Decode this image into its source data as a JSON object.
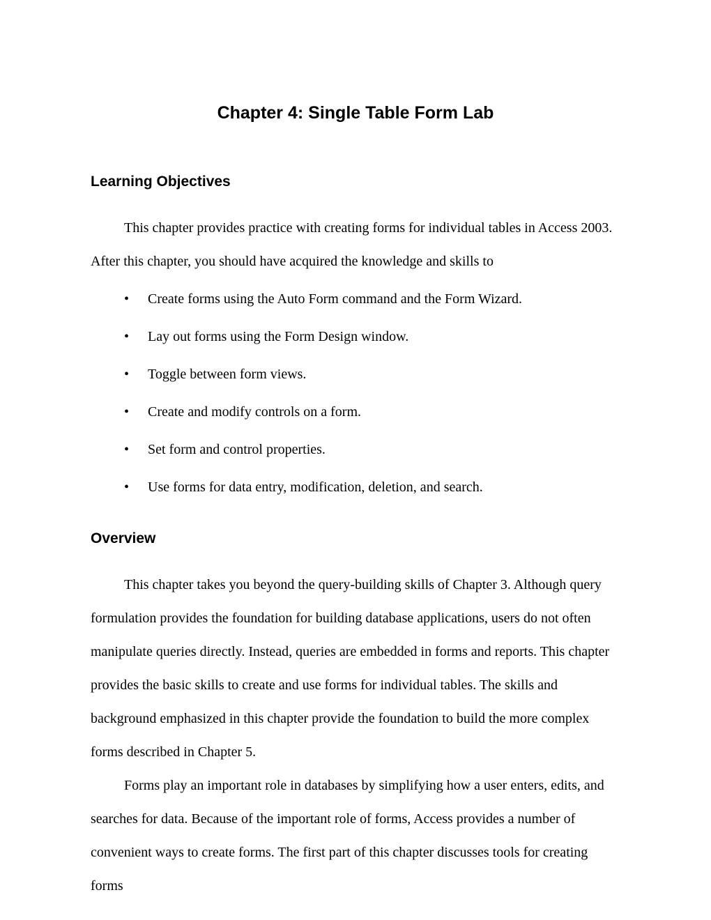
{
  "chapter_title": "Chapter 4: Single Table Form Lab",
  "section_objectives": {
    "heading": "Learning Objectives",
    "intro": "This chapter provides practice with creating forms for individual tables in Access 2003. After this chapter, you should have acquired the knowledge and skills to",
    "items": [
      "Create forms using the Auto Form command and the Form Wizard.",
      "Lay out forms using the Form Design window.",
      "Toggle between form views.",
      "Create and modify controls on a form.",
      "Set form and control properties.",
      "Use forms for data entry, modification, deletion, and search."
    ]
  },
  "section_overview": {
    "heading": "Overview",
    "paragraphs": [
      "This chapter takes you beyond the query-building skills of Chapter 3. Although query formulation provides the foundation for building database applications, users do not often manipulate queries directly. Instead, queries are embedded in forms and reports. This chapter provides the basic skills to create and use forms for individual tables. The skills and background emphasized in this chapter provide the foundation to build the more complex forms described in Chapter 5.",
      "Forms play an important role in databases by simplifying how a user enters, edits, and searches for data. Because of the important role of forms, Access provides a number of convenient ways to create forms. The first part of this chapter discusses tools for creating forms"
    ]
  }
}
